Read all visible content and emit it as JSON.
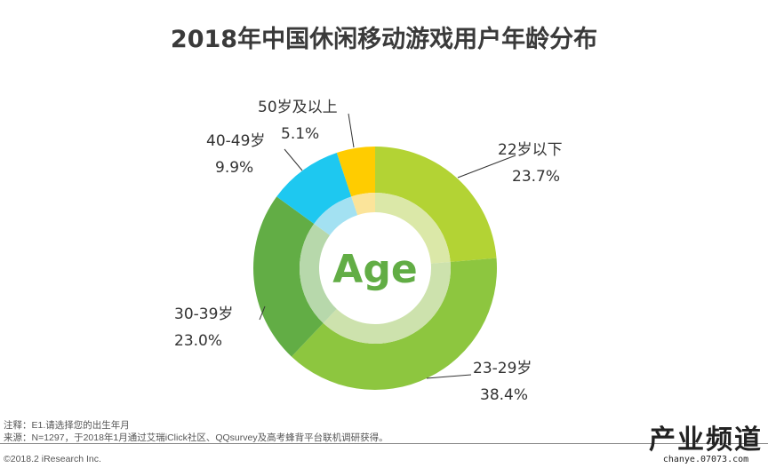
{
  "chart_data": {
    "type": "pie",
    "title": "2018年中国休闲移动游戏用户年龄分布",
    "center_label": "Age",
    "donut": true,
    "slices": [
      {
        "label": "22岁以下",
        "value": 23.7,
        "display": "23.7%",
        "color": "#b3d334",
        "inner_color": "#dbe8a8"
      },
      {
        "label": "23-29岁",
        "value": 38.4,
        "display": "38.4%",
        "color": "#8dc63f",
        "inner_color": "#cde2ad"
      },
      {
        "label": "30-39岁",
        "value": 23.0,
        "display": "23.0%",
        "color": "#62ad45",
        "inner_color": "#b7d8ab"
      },
      {
        "label": "40-49岁",
        "value": 9.9,
        "display": "9.9%",
        "color": "#1ec8f0",
        "inner_color": "#a3e1f2"
      },
      {
        "label": "50岁及以上",
        "value": 5.1,
        "display": "5.1%",
        "color": "#ffcc00",
        "inner_color": "#fbe49a"
      }
    ]
  },
  "footer": {
    "note": "注释：E1.请选择您的出生年月",
    "source": "来源：N=1297，于2018年1月通过艾瑞iClick社区、QQsurvey及高考蜂背平台联机调研获得。",
    "copyright": "©2018.2 iResearch Inc."
  },
  "watermark": {
    "text": "产业频道",
    "url_text": "chanye.07073.com"
  }
}
